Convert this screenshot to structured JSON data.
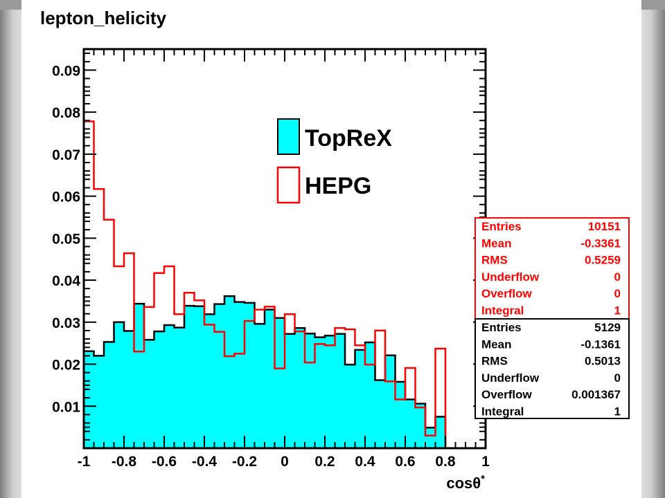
{
  "chart_data": {
    "type": "histogram",
    "title": "lepton_helicity",
    "xlabel": "cosθ*",
    "xlim": [
      -1,
      1
    ],
    "ylim": [
      0,
      0.095
    ],
    "bin_width": 0.05,
    "x_ticks": [
      "-1",
      "-0.8",
      "-0.6",
      "-0.4",
      "-0.2",
      "0",
      "0.2",
      "0.4",
      "0.6",
      "0.8",
      "1"
    ],
    "y_ticks": [
      "0.01",
      "0.02",
      "0.03",
      "0.04",
      "0.05",
      "0.06",
      "0.07",
      "0.08",
      "0.09"
    ],
    "series": [
      {
        "name": "TopReX",
        "style": "filled",
        "fill_color": "#00ffff",
        "line_color": "#000000",
        "values": [
          0.0231,
          0.022,
          0.0253,
          0.03,
          0.0279,
          0.0344,
          0.0258,
          0.0278,
          0.0293,
          0.0287,
          0.0339,
          0.0338,
          0.0319,
          0.0343,
          0.0362,
          0.0348,
          0.0346,
          0.0296,
          0.033,
          0.031,
          0.0272,
          0.0286,
          0.0273,
          0.0264,
          0.0268,
          0.0272,
          0.0199,
          0.0234,
          0.0252,
          0.0162,
          0.0221,
          0.0158,
          0.0116,
          0.0106,
          0.0049,
          0.0075
        ]
      },
      {
        "name": "HEPG",
        "style": "line",
        "line_color": "#ff0000",
        "values": [
          0.0778,
          0.0617,
          0.0544,
          0.0433,
          0.0464,
          0.023,
          0.0336,
          0.0417,
          0.0433,
          0.0319,
          0.037,
          0.0352,
          0.0294,
          0.0277,
          0.0219,
          0.0225,
          0.0303,
          0.033,
          0.0337,
          0.019,
          0.0319,
          0.0278,
          0.0204,
          0.0248,
          0.0245,
          0.0286,
          0.0283,
          0.0245,
          0.0199,
          0.028,
          0.0159,
          0.0116,
          0.0191,
          0.0097,
          0.003,
          0.0237
        ]
      }
    ],
    "legend_position": "top-center",
    "stats_boxes": [
      {
        "color": "#ff0000",
        "rows": [
          [
            "Entries",
            "10151"
          ],
          [
            "Mean",
            "-0.3361"
          ],
          [
            "RMS",
            "0.5259"
          ],
          [
            "Underflow",
            "0"
          ],
          [
            "Overflow",
            "0"
          ],
          [
            "Integral",
            "1"
          ]
        ]
      },
      {
        "color": "#000000",
        "rows": [
          [
            "Entries",
            "5129"
          ],
          [
            "Mean",
            "-0.1361"
          ],
          [
            "RMS",
            "0.5013"
          ],
          [
            "Underflow",
            "0"
          ],
          [
            "Overflow",
            "0.001367"
          ],
          [
            "Integral",
            "1"
          ]
        ]
      }
    ]
  }
}
